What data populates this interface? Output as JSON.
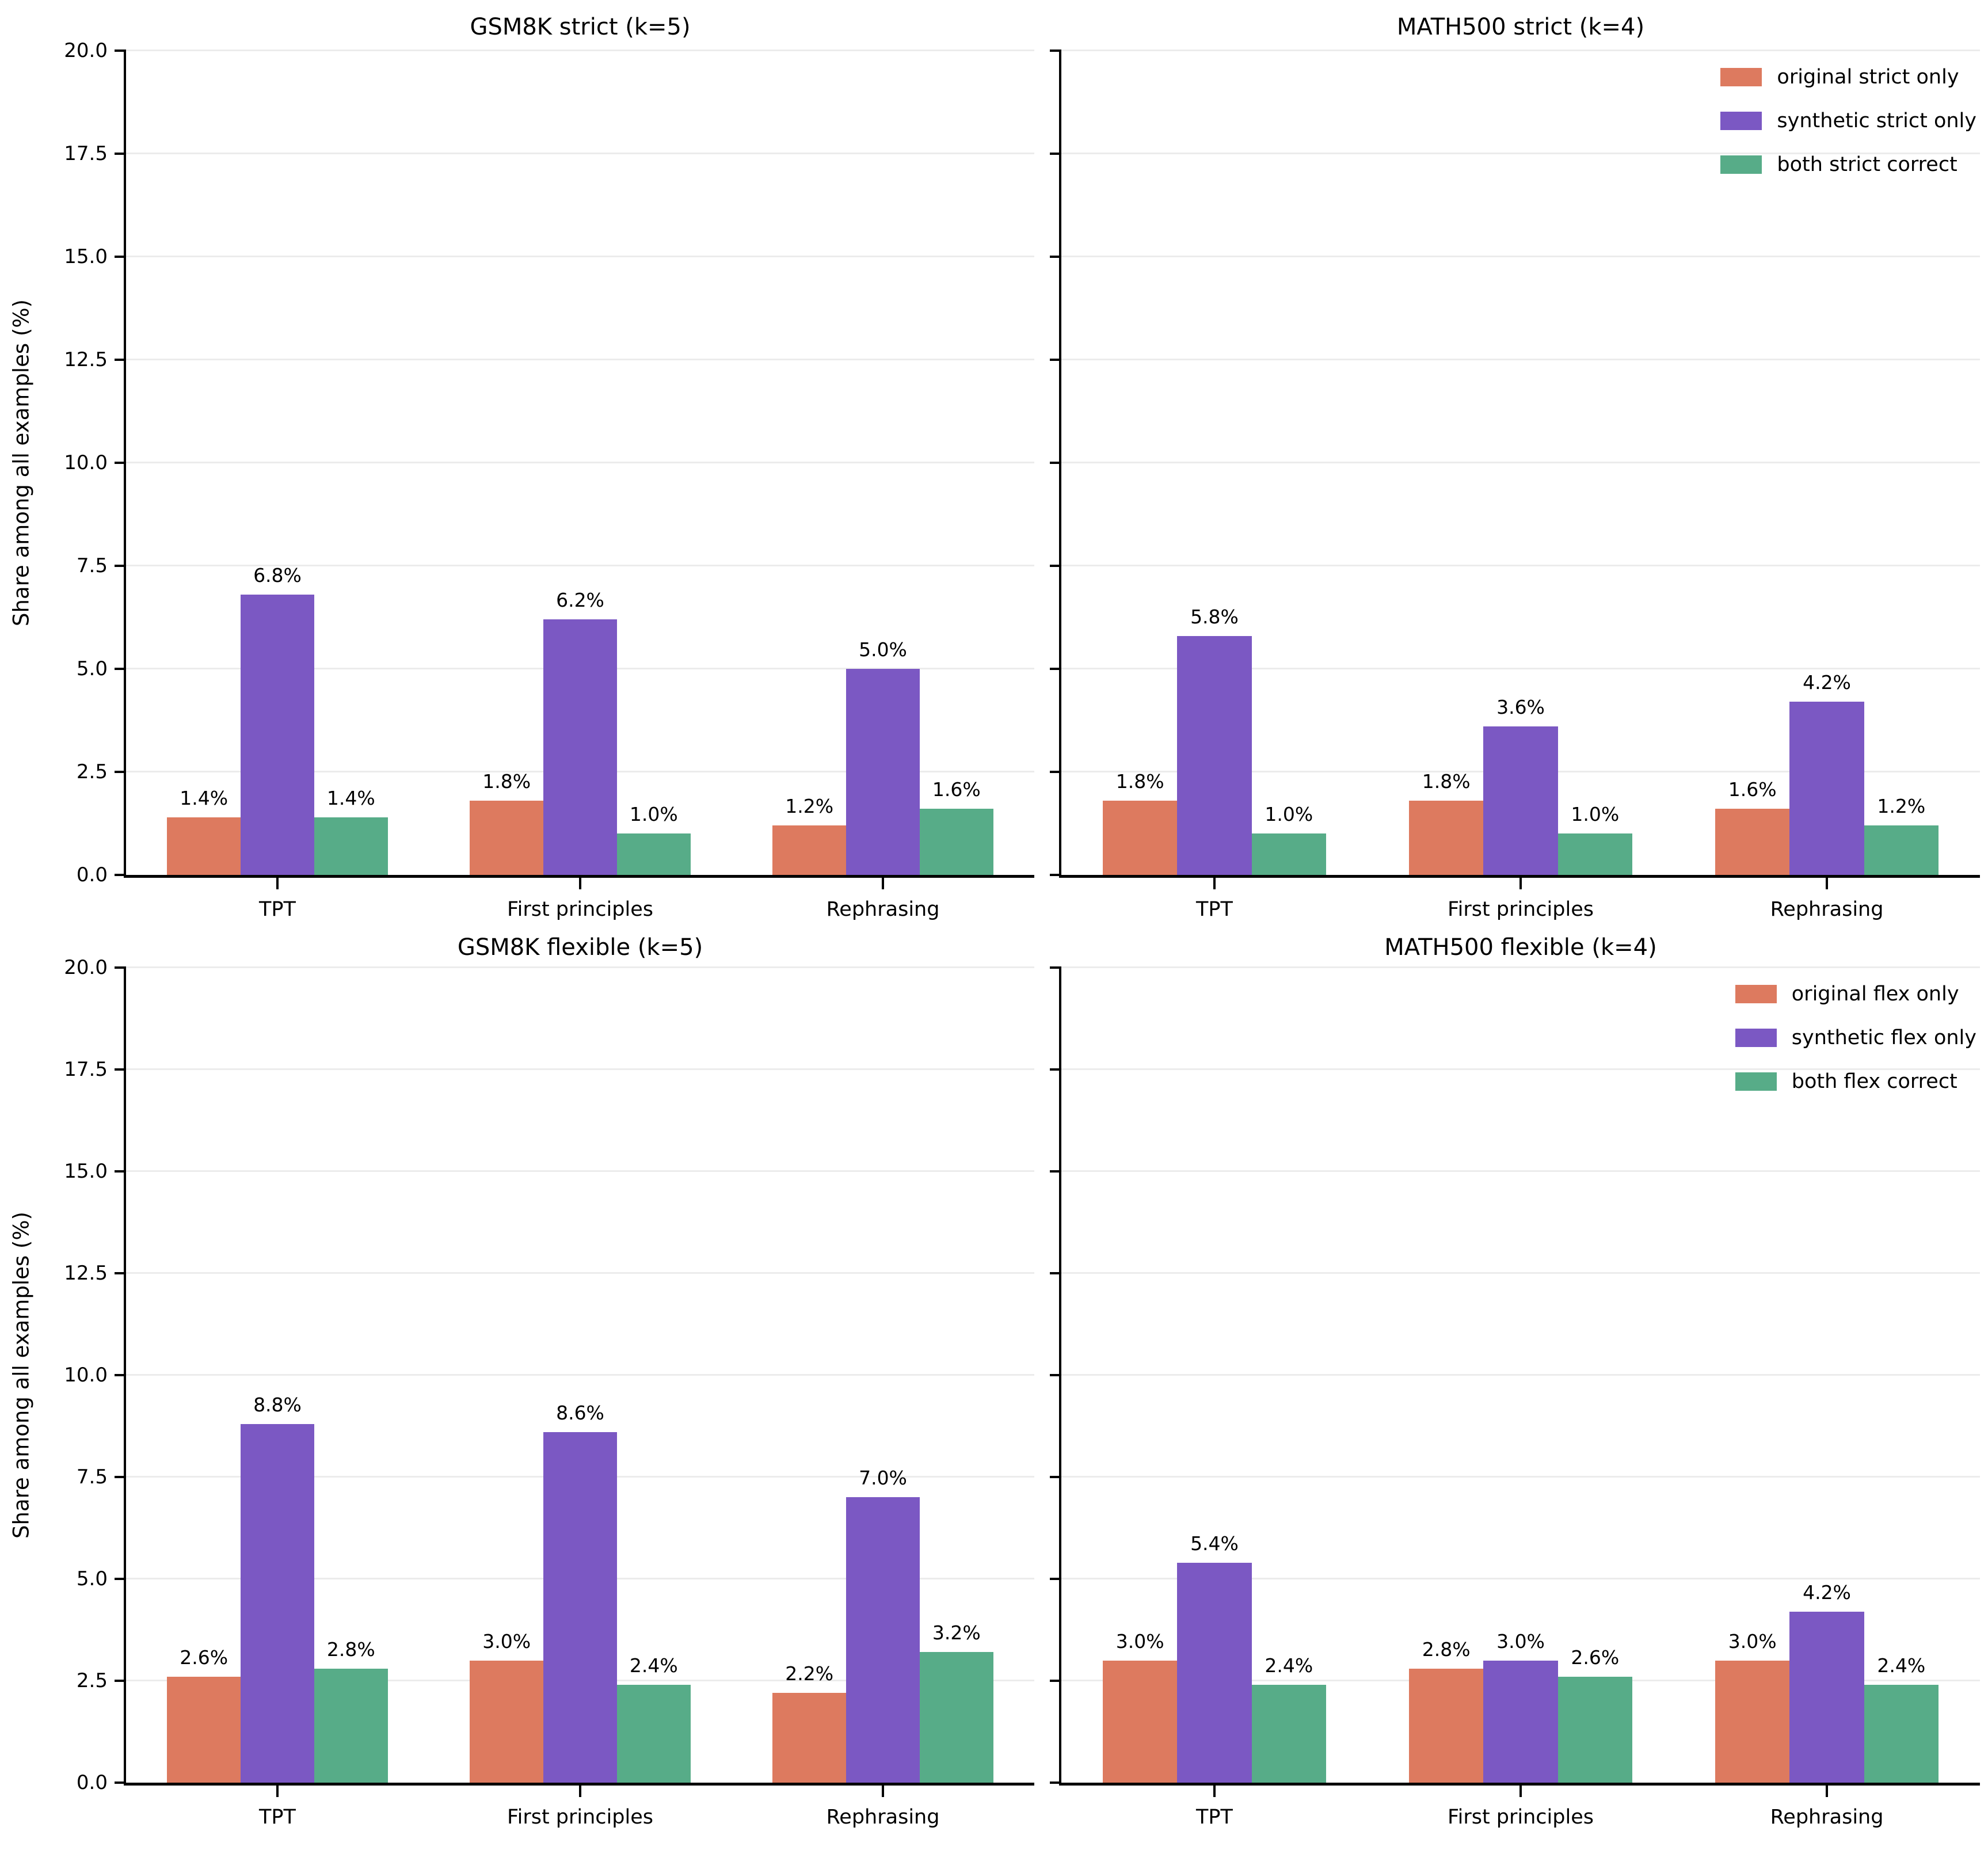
{
  "axis": {
    "ylabel": "Share among all examples (%)",
    "ytick_labels": [
      "0.0",
      "2.5",
      "5.0",
      "7.5",
      "10.0",
      "12.5",
      "15.0",
      "17.5",
      "20.0"
    ],
    "categories": [
      "TPT",
      "First principles",
      "Rephrasing"
    ]
  },
  "palette": {
    "original": "#dd7a5f",
    "synthetic": "#7b58c3",
    "both": "#57ac88",
    "grid": "#ececec",
    "spine": "#000000"
  },
  "chart_data": [
    {
      "type": "bar",
      "title": "GSM8K strict (k=5)",
      "ylabel": "Share among all examples (%)",
      "categories": [
        "TPT",
        "First principles",
        "Rephrasing"
      ],
      "series": [
        {
          "name": "original strict only",
          "color": "#dd7a5f",
          "values": [
            1.4,
            1.8,
            1.2
          ]
        },
        {
          "name": "synthetic strict only",
          "color": "#7b58c3",
          "values": [
            6.8,
            6.2,
            5.0
          ]
        },
        {
          "name": "both strict correct",
          "color": "#57ac88",
          "values": [
            1.4,
            1.0,
            1.6
          ]
        }
      ],
      "bar_labels": [
        [
          "1.4%",
          "1.8%",
          "1.2%"
        ],
        [
          "6.8%",
          "6.2%",
          "5.0%"
        ],
        [
          "1.4%",
          "1.0%",
          "1.6%"
        ]
      ],
      "ylim": [
        0,
        20
      ],
      "grid": true,
      "show_ytick_labels": true,
      "show_legend": false,
      "legend_position": "upper right"
    },
    {
      "type": "bar",
      "title": "MATH500 strict (k=4)",
      "ylabel": "",
      "categories": [
        "TPT",
        "First principles",
        "Rephrasing"
      ],
      "series": [
        {
          "name": "original strict only",
          "color": "#dd7a5f",
          "values": [
            1.8,
            1.8,
            1.6
          ]
        },
        {
          "name": "synthetic strict only",
          "color": "#7b58c3",
          "values": [
            5.8,
            3.6,
            4.2
          ]
        },
        {
          "name": "both strict correct",
          "color": "#57ac88",
          "values": [
            1.0,
            1.0,
            1.2
          ]
        }
      ],
      "bar_labels": [
        [
          "1.8%",
          "1.8%",
          "1.6%"
        ],
        [
          "5.8%",
          "3.6%",
          "4.2%"
        ],
        [
          "1.0%",
          "1.0%",
          "1.2%"
        ]
      ],
      "ylim": [
        0,
        20
      ],
      "grid": true,
      "show_ytick_labels": false,
      "show_legend": true,
      "legend_position": "upper right"
    },
    {
      "type": "bar",
      "title": "GSM8K flexible (k=5)",
      "ylabel": "Share among all examples (%)",
      "categories": [
        "TPT",
        "First principles",
        "Rephrasing"
      ],
      "series": [
        {
          "name": "original flex only",
          "color": "#dd7a5f",
          "values": [
            2.6,
            3.0,
            2.2
          ]
        },
        {
          "name": "synthetic flex only",
          "color": "#7b58c3",
          "values": [
            8.8,
            8.6,
            7.0
          ]
        },
        {
          "name": "both flex correct",
          "color": "#57ac88",
          "values": [
            2.8,
            2.4,
            3.2
          ]
        }
      ],
      "bar_labels": [
        [
          "2.6%",
          "3.0%",
          "2.2%"
        ],
        [
          "8.8%",
          "8.6%",
          "7.0%"
        ],
        [
          "2.8%",
          "2.4%",
          "3.2%"
        ]
      ],
      "ylim": [
        0,
        20
      ],
      "grid": true,
      "show_ytick_labels": true,
      "show_legend": false,
      "legend_position": "upper right"
    },
    {
      "type": "bar",
      "title": "MATH500 flexible (k=4)",
      "ylabel": "",
      "categories": [
        "TPT",
        "First principles",
        "Rephrasing"
      ],
      "series": [
        {
          "name": "original flex only",
          "color": "#dd7a5f",
          "values": [
            3.0,
            2.8,
            3.0
          ]
        },
        {
          "name": "synthetic flex only",
          "color": "#7b58c3",
          "values": [
            5.4,
            3.0,
            4.2
          ]
        },
        {
          "name": "both flex correct",
          "color": "#57ac88",
          "values": [
            2.4,
            2.6,
            2.4
          ]
        }
      ],
      "bar_labels": [
        [
          "3.0%",
          "2.8%",
          "3.0%"
        ],
        [
          "5.4%",
          "3.0%",
          "4.2%"
        ],
        [
          "2.4%",
          "2.6%",
          "2.4%"
        ]
      ],
      "ylim": [
        0,
        20
      ],
      "grid": true,
      "show_ytick_labels": false,
      "show_legend": true,
      "legend_position": "upper right"
    }
  ]
}
